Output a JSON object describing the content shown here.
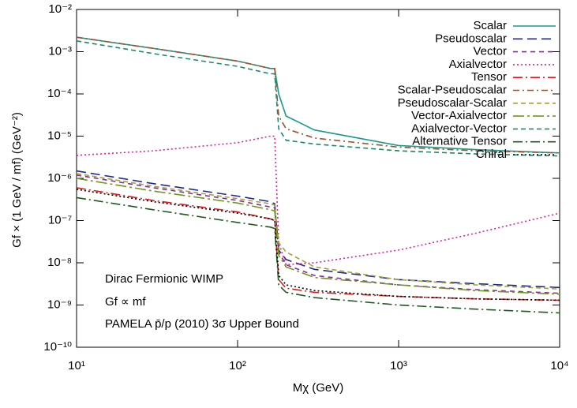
{
  "chart_data": {
    "type": "line",
    "xlabel": "Mχ (GeV)",
    "ylabel": "Gf × (1 GeV / mf)   (GeV⁻²)",
    "annotations": [
      "Dirac Fermionic WIMP",
      "Gf ∝ mf",
      "PAMELA p̄/p (2010) 3σ Upper Bound"
    ],
    "log_x": true,
    "log_y": true,
    "legend": "top-right",
    "xlim": [
      10,
      10000
    ],
    "ylim": [
      1e-10,
      0.01
    ],
    "xticks": [
      {
        "value": 10,
        "label": "10¹"
      },
      {
        "value": 100,
        "label": "10²"
      },
      {
        "value": 1000,
        "label": "10³"
      },
      {
        "value": 10000,
        "label": "10⁴"
      }
    ],
    "yticks": [
      {
        "value": 1e-10,
        "label": "10⁻¹⁰"
      },
      {
        "value": 1e-09,
        "label": "10⁻⁹"
      },
      {
        "value": 1e-08,
        "label": "10⁻⁸"
      },
      {
        "value": 1e-07,
        "label": "10⁻⁷"
      },
      {
        "value": 1e-06,
        "label": "10⁻⁶"
      },
      {
        "value": 1e-05,
        "label": "10⁻⁵"
      },
      {
        "value": 0.0001,
        "label": "10⁻⁴"
      },
      {
        "value": 0.001,
        "label": "10⁻³"
      },
      {
        "value": 0.01,
        "label": "10⁻²"
      }
    ],
    "x": [
      10,
      30,
      100,
      160,
      170,
      180,
      200,
      300,
      1000,
      3000,
      10000
    ],
    "series": [
      {
        "name": "Scalar",
        "color": "#1a9a8c",
        "dash": "none",
        "values": [
          0.0022,
          0.0012,
          0.0006,
          0.0004,
          0.0004,
          0.0001,
          3e-05,
          1.4e-05,
          6e-06,
          4.8e-06,
          4e-06
        ]
      },
      {
        "name": "Pseudoscalar",
        "color": "#1c2a8c",
        "dash": "12,6",
        "values": [
          1.5e-06,
          7.5e-07,
          3.8e-07,
          2.8e-07,
          2.5e-07,
          2e-08,
          1.2e-08,
          7e-09,
          4e-09,
          3.2e-09,
          2.6e-09
        ]
      },
      {
        "name": "Vector",
        "color": "#8a2a9c",
        "dash": "6,5",
        "values": [
          1.2e-06,
          6e-07,
          3e-07,
          2.1e-07,
          2e-07,
          1.8e-08,
          9e-09,
          5e-09,
          3e-09,
          2.3e-09,
          1.9e-09
        ]
      },
      {
        "name": "Axialvector",
        "color": "#e0209a",
        "dash": "2,3",
        "values": [
          3.5e-06,
          4.5e-06,
          7e-06,
          1e-05,
          1e-05,
          3e-08,
          9e-09,
          1e-08,
          2e-08,
          5e-08,
          1.5e-07
        ]
      },
      {
        "name": "Tensor",
        "color": "#e01a1a",
        "dash": "12,4,2,4",
        "values": [
          6e-07,
          3e-07,
          1.6e-07,
          1.1e-07,
          1e-07,
          4e-09,
          2.5e-09,
          2e-09,
          1.6e-09,
          1.4e-09,
          1.3e-09
        ]
      },
      {
        "name": "Scalar-Pseudoscalar",
        "color": "#a0522d",
        "dash": "8,4,2,4",
        "values": [
          0.0022,
          0.0012,
          0.0006,
          0.0004,
          0.0004,
          3e-05,
          1.5e-05,
          9e-06,
          5.5e-06,
          4.5e-06,
          4e-06
        ]
      },
      {
        "name": "Pseudoscalar-Scalar",
        "color": "#a8a040",
        "dash": "6,4",
        "values": [
          1.3e-06,
          6.5e-07,
          3.3e-07,
          2.5e-07,
          2.3e-07,
          3e-08,
          1.8e-08,
          8e-09,
          4e-09,
          3e-09,
          2.4e-09
        ]
      },
      {
        "name": "Vector-Axialvector",
        "color": "#6a9a1a",
        "dash": "14,4,3,4",
        "values": [
          1e-06,
          5e-07,
          2.6e-07,
          1.8e-07,
          1.7e-07,
          1.5e-08,
          8e-09,
          4.5e-09,
          3e-09,
          2.2e-09,
          1.8e-09
        ]
      },
      {
        "name": "Axialvector-Vector",
        "color": "#1a8a6a",
        "dash": "6,4",
        "values": [
          0.0018,
          0.0009,
          0.00045,
          0.0003,
          0.0003,
          1.5e-05,
          8e-06,
          6.5e-06,
          4.5e-06,
          3.8e-06,
          3.4e-06
        ]
      },
      {
        "name": "Alternative Tensor",
        "color": "#1e5a1e",
        "dash": "12,4,2,4",
        "values": [
          3.5e-07,
          1.8e-07,
          9e-08,
          7e-08,
          6.5e-08,
          3e-09,
          2e-09,
          1.5e-09,
          1e-09,
          8e-10,
          6.5e-10
        ]
      },
      {
        "name": "Chiral",
        "color": "#000000",
        "dash": "2,3",
        "values": [
          5.5e-07,
          2.8e-07,
          1.5e-07,
          1.1e-07,
          1e-07,
          5e-09,
          3e-09,
          2.2e-09,
          1.6e-09,
          1.4e-09,
          1.3e-09
        ]
      }
    ]
  }
}
